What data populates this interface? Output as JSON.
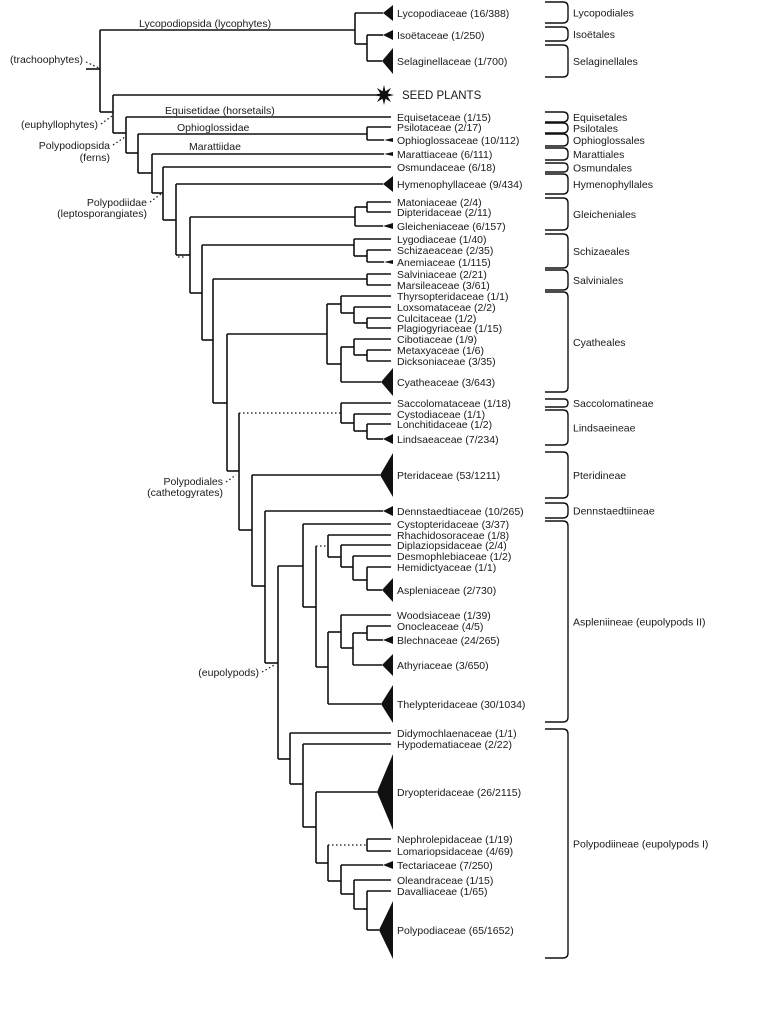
{
  "leaves": [
    {
      "label": "Lycopodiaceae (16/388)"
    },
    {
      "label": "Isoëtaceae (1/250)"
    },
    {
      "label": "Selaginellaceae (1/700)"
    },
    {
      "label": "SEED PLANTS"
    },
    {
      "label": "Equisetaceae (1/15)"
    },
    {
      "label": "Psilotaceae (2/17)"
    },
    {
      "label": "Ophioglossaceae (10/112)"
    },
    {
      "label": "Marattiaceae (6/111)"
    },
    {
      "label": "Osmundaceae (6/18)"
    },
    {
      "label": "Hymenophyllaceae (9/434)"
    },
    {
      "label": "Matoniaceae (2/4)"
    },
    {
      "label": "Dipteridaceae (2/11)"
    },
    {
      "label": "Gleicheniaceae (6/157)"
    },
    {
      "label": "Lygodiaceae (1/40)"
    },
    {
      "label": "Schizaeaceae (2/35)"
    },
    {
      "label": "Anemiaceae (1/115)"
    },
    {
      "label": "Salviniaceae (2/21)"
    },
    {
      "label": "Marsileaceae (3/61)"
    },
    {
      "label": "Thyrsopteridaceae (1/1)"
    },
    {
      "label": "Loxsomataceae (2/2)"
    },
    {
      "label": "Culcitaceae (1/2)"
    },
    {
      "label": "Plagiogyriaceae (1/15)"
    },
    {
      "label": "Cibotiaceae (1/9)"
    },
    {
      "label": "Metaxyaceae (1/6)"
    },
    {
      "label": "Dicksoniaceae (3/35)"
    },
    {
      "label": "Cyatheaceae (3/643)"
    },
    {
      "label": "Saccolomataceae (1/18)"
    },
    {
      "label": "Cystodiaceae (1/1)"
    },
    {
      "label": "Lonchitidaceae (1/2)"
    },
    {
      "label": "Lindsaeaceae (7/234)"
    },
    {
      "label": "Pteridaceae (53/1211)"
    },
    {
      "label": "Dennstaedtiaceae (10/265)"
    },
    {
      "label": "Cystopteridaceae (3/37)"
    },
    {
      "label": "Rhachidosoraceae (1/8)"
    },
    {
      "label": "Diplaziopsidaceae (2/4)"
    },
    {
      "label": "Desmophlebiaceae (1/2)"
    },
    {
      "label": "Hemidictyaceae (1/1)"
    },
    {
      "label": "Aspleniaceae (2/730)"
    },
    {
      "label": "Woodsiaceae (1/39)"
    },
    {
      "label": "Onocleaceae (4/5)"
    },
    {
      "label": "Blechnaceae (24/265)"
    },
    {
      "label": "Athyriaceae (3/650)"
    },
    {
      "label": "Thelypteridaceae (30/1034)"
    },
    {
      "label": "Didymochlaenaceae (1/1)"
    },
    {
      "label": "Hypodematiaceae (2/22)"
    },
    {
      "label": "Dryopteridaceae (26/2115)"
    },
    {
      "label": "Nephrolepidaceae (1/19)"
    },
    {
      "label": "Lomariopsidaceae (4/69)"
    },
    {
      "label": "Tectariaceae (7/250)"
    },
    {
      "label": "Oleandraceae (1/15)"
    },
    {
      "label": "Davalliaceae (1/65)"
    },
    {
      "label": "Polypodiaceae (65/1652)"
    }
  ],
  "orders": [
    {
      "label": "Lycopodiales"
    },
    {
      "label": "Isoëtales"
    },
    {
      "label": "Selaginellales"
    },
    {
      "label": "Equisetales"
    },
    {
      "label": "Psilotales"
    },
    {
      "label": "Ophioglossales"
    },
    {
      "label": "Marattiales"
    },
    {
      "label": "Osmundales"
    },
    {
      "label": "Hymenophyllales"
    },
    {
      "label": "Gleicheniales"
    },
    {
      "label": "Schizaeales"
    },
    {
      "label": "Salviniales"
    },
    {
      "label": "Cyatheales"
    },
    {
      "label": "Saccolomatineae"
    },
    {
      "label": "Lindsaeineae"
    },
    {
      "label": "Pteridineae"
    },
    {
      "label": "Dennstaedtiineae"
    },
    {
      "label": "Aspleniineae (eupolypods II)"
    },
    {
      "label": "Polypodiineae (eupolypods I)"
    }
  ],
  "clades": {
    "lycopodiopsida": "Lycopodiopsida (lycophytes)",
    "tracheophytes": "(trachoophytes)",
    "euphyllophytes": "(euphyllophytes)",
    "equisetidae": "Equisetidae (horsetails)",
    "ophioglossidae": "Ophioglossidae",
    "marattiidae": "Marattiidae",
    "polypodiopsida": "Polypodiopsida",
    "ferns": "(ferns)",
    "polypodiidae": "Polypodiidae",
    "leptosporangiates": "(leptosporangiates)",
    "polypodiales": "Polypodiales",
    "cathetogyrates": "(cathetogyrates)",
    "eupolypods": "(eupolypods)"
  }
}
